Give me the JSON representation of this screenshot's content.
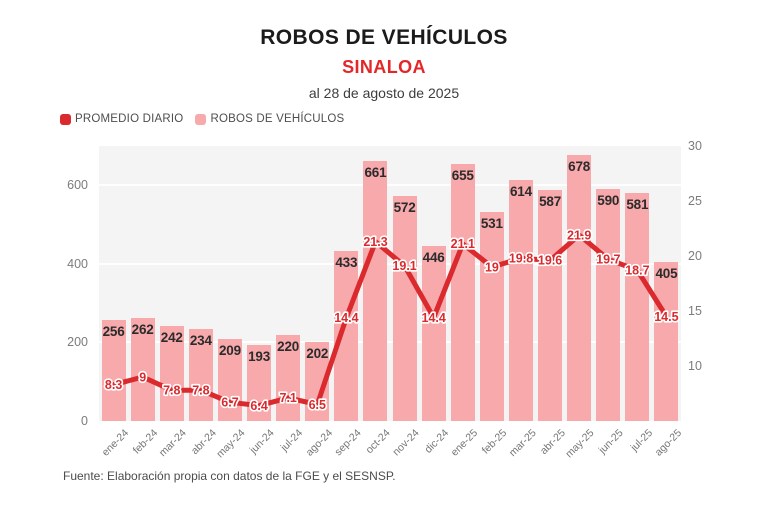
{
  "header": {
    "title": "ROBOS DE VEHÍCULOS",
    "subtitle": "SINALOA",
    "date_line": "al 28 de agosto de 2025"
  },
  "legend": [
    {
      "label": "PROMEDIO DIARIO",
      "color": "#da2a2d"
    },
    {
      "label": "ROBOS DE VEHÍCULOS",
      "color": "#f7a9ac"
    }
  ],
  "footer": {
    "source": "Fuente: Elaboración propia con datos de la FGE y el SESNSP."
  },
  "chart_data": {
    "type": "bar+line",
    "title": "ROBOS DE VEHÍCULOS",
    "subtitle": "SINALOA",
    "categories": [
      "ene-24",
      "feb-24",
      "mar-24",
      "abr-24",
      "may-24",
      "jun-24",
      "jul-24",
      "ago-24",
      "sep-24",
      "oct-24",
      "nov-24",
      "dic-24",
      "ene-25",
      "feb-25",
      "mar-25",
      "abr-25",
      "may-25",
      "jun-25",
      "jul-25",
      "ago-25"
    ],
    "series": [
      {
        "name": "ROBOS DE VEHÍCULOS",
        "type": "bar",
        "axis": "left",
        "color": "#f7a9ac",
        "values": [
          256,
          262,
          242,
          234,
          209,
          193,
          220,
          202,
          433,
          661,
          572,
          446,
          655,
          531,
          614,
          587,
          678,
          590,
          581,
          405
        ]
      },
      {
        "name": "PROMEDIO DIARIO",
        "type": "line",
        "axis": "right",
        "color": "#da2a2d",
        "values": [
          8.3,
          9,
          7.8,
          7.8,
          6.7,
          6.4,
          7.1,
          6.5,
          14.4,
          21.3,
          19.1,
          14.4,
          21.1,
          19,
          19.8,
          19.6,
          21.9,
          19.7,
          18.7,
          14.5
        ]
      }
    ],
    "left_axis": {
      "ticks": [
        0,
        200,
        400,
        600
      ],
      "range": [
        0,
        700
      ]
    },
    "right_axis": {
      "ticks": [
        10,
        15,
        20,
        25,
        30
      ],
      "range": [
        5,
        30
      ]
    },
    "grid": "subtle white horizontal lines at left-axis ticks",
    "legend_position": "top-left",
    "plot_background": "#f4f4f5",
    "data_labels": true
  }
}
